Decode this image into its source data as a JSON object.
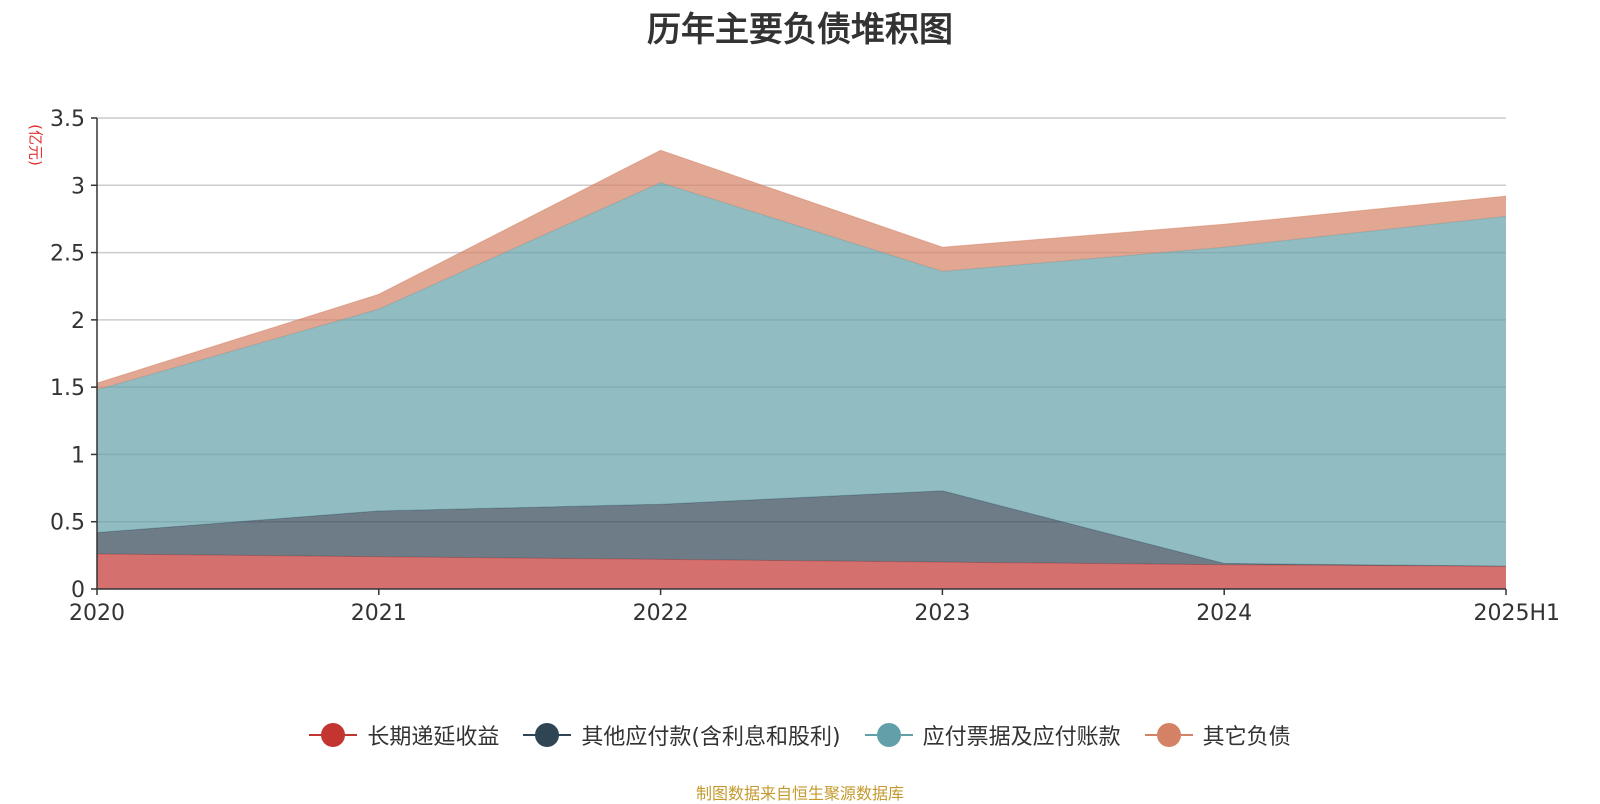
{
  "title": "历年主要负债堆积图",
  "source": "制图数据来自恒生聚源数据库",
  "chart_data": {
    "type": "area",
    "stacked": true,
    "title": "历年主要负债堆积图",
    "unit": "(亿元)",
    "categories": [
      "2020",
      "2021",
      "2022",
      "2023",
      "2024",
      "2025H1"
    ],
    "ylim": [
      0,
      3.5
    ],
    "yticks": [
      "0",
      "0.5",
      "1",
      "1.5",
      "2",
      "2.5",
      "3",
      "3.5"
    ],
    "grid": true,
    "legend_position": "bottom",
    "series": [
      {
        "name": "长期递延收益",
        "color": "#c23531",
        "values": [
          0.26,
          0.24,
          0.22,
          0.2,
          0.18,
          0.17
        ]
      },
      {
        "name": "其他应付款(含利息和股利)",
        "color": "#2f4554",
        "values": [
          0.16,
          0.34,
          0.41,
          0.53,
          0.01,
          0.0
        ]
      },
      {
        "name": "应付票据及应付账款",
        "color": "#61a0a8",
        "values": [
          1.06,
          1.5,
          2.39,
          1.63,
          2.35,
          2.6
        ]
      },
      {
        "name": "其它负债",
        "color": "#d48265",
        "values": [
          0.05,
          0.11,
          0.24,
          0.18,
          0.17,
          0.15
        ]
      }
    ]
  }
}
